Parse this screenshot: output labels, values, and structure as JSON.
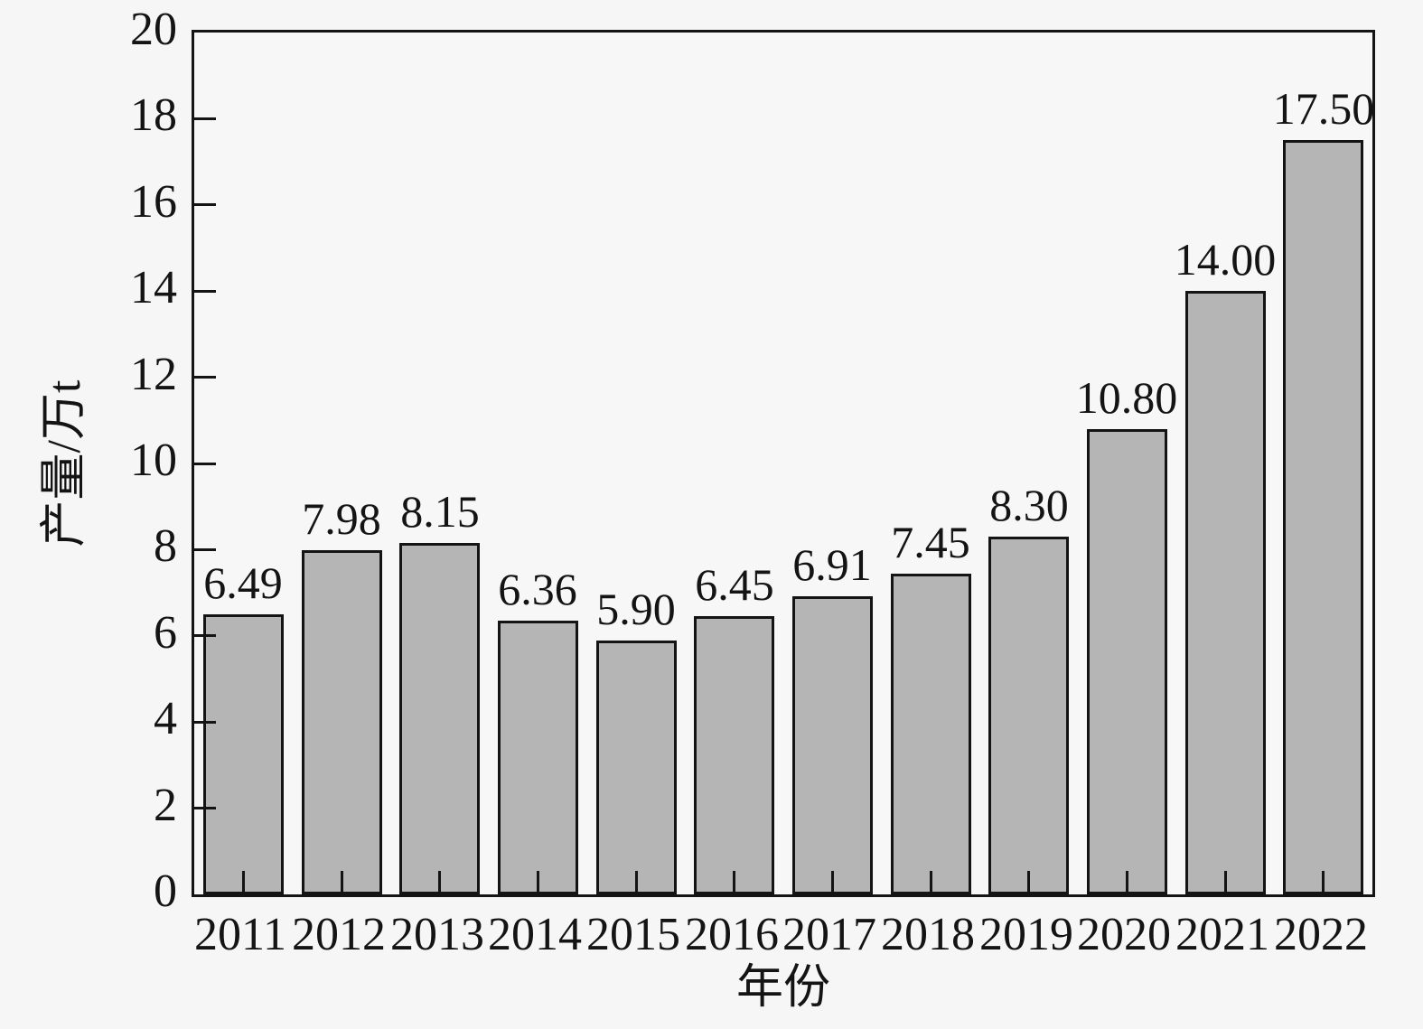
{
  "chart_data": {
    "type": "bar",
    "title": "",
    "xlabel": "年份",
    "ylabel": "产量/万t",
    "categories": [
      "2011",
      "2012",
      "2013",
      "2014",
      "2015",
      "2016",
      "2017",
      "2018",
      "2019",
      "2020",
      "2021",
      "2022"
    ],
    "values": [
      6.49,
      7.98,
      8.15,
      6.36,
      5.9,
      6.45,
      6.91,
      7.45,
      8.3,
      10.8,
      14.0,
      17.5
    ],
    "value_labels": [
      "6.49",
      "7.98",
      "8.15",
      "6.36",
      "5.90",
      "6.45",
      "6.91",
      "7.45",
      "8.30",
      "10.80",
      "14.00",
      "17.50"
    ],
    "ylim": [
      0,
      20
    ],
    "ytick_step": 2,
    "ytick_labels": [
      "0",
      "2",
      "4",
      "6",
      "8",
      "10",
      "12",
      "14",
      "16",
      "18",
      "20"
    ],
    "grid": false,
    "legend": "none",
    "layout": {
      "bar_fraction_of_slot": 0.82,
      "ticks_direction": "in"
    },
    "colors": {
      "background": "#f6f6f6",
      "plot_background": "#f7f7f7",
      "bar_fill": "#b5b5b5",
      "bar_border": "#141414",
      "axis": "#141414",
      "text": "#141414"
    }
  }
}
